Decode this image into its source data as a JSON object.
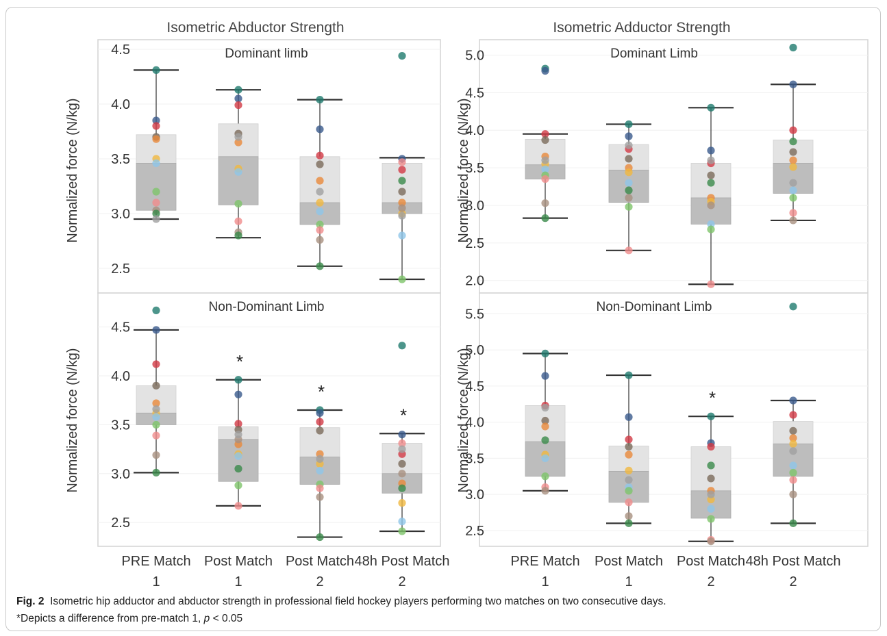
{
  "colors": {
    "box_upper": "#e3e3e3",
    "box_lower": "#bdbdbd",
    "whisker": "#333333",
    "divider": "#d4d4d4",
    "players": [
      "#1f7a6e",
      "#3a5a8c",
      "#d23a45",
      "#7a6a5a",
      "#e8883a",
      "#f0b840",
      "#8fc5e8",
      "#7ec46a",
      "#f08c8c",
      "#a89080",
      "#3a8a4a",
      "#a0a0a0"
    ]
  },
  "chart_data": [
    {
      "type": "box",
      "column_title": "Isometric Abductor Strength",
      "subtitle": "Dominant limb",
      "ylabel": "Normalized force (N/kg)",
      "ylim": [
        2.3,
        4.55
      ],
      "yticks": [
        2.5,
        3.0,
        3.5,
        4.0,
        4.5
      ],
      "ytick_labels": [
        "2.5",
        "3.0",
        "3.5",
        "4.0",
        "4.5"
      ],
      "categories": [
        "PRE Match 1",
        "Post Match 1",
        "Post Match 2",
        "48h Post Match 2"
      ],
      "boxes": [
        {
          "min": 2.95,
          "q1": 3.03,
          "median": 3.46,
          "q3": 3.72,
          "max": 4.31,
          "sig": false
        },
        {
          "min": 2.78,
          "q1": 3.08,
          "median": 3.52,
          "q3": 3.82,
          "max": 4.13,
          "sig": false
        },
        {
          "min": 2.52,
          "q1": 2.9,
          "median": 3.1,
          "q3": 3.52,
          "max": 4.04,
          "sig": false
        },
        {
          "min": 2.4,
          "q1": 3.0,
          "median": 3.1,
          "q3": 3.46,
          "max": 3.51,
          "sig": false
        }
      ],
      "points": [
        [
          4.31,
          3.85,
          3.8,
          3.7,
          3.68,
          3.5,
          3.46,
          3.2,
          3.1,
          3.03,
          3.0,
          2.95
        ],
        [
          4.13,
          4.05,
          3.99,
          3.73,
          3.65,
          3.41,
          3.38,
          3.09,
          2.93,
          2.83,
          2.8,
          3.7
        ],
        [
          4.04,
          3.77,
          3.53,
          3.45,
          3.3,
          3.1,
          3.02,
          2.9,
          2.85,
          2.76,
          2.52,
          3.2
        ],
        [
          4.44,
          3.5,
          3.4,
          3.2,
          3.1,
          3.0,
          2.8,
          2.4,
          3.47,
          3.05,
          3.3,
          2.98
        ]
      ]
    },
    {
      "type": "box",
      "column_title": "Isometric Adductor Strength",
      "subtitle": "Dominant Limb",
      "ylabel": "Normalized force (N/kg)",
      "ylim": [
        1.87,
        5.15
      ],
      "yticks": [
        2.0,
        2.5,
        3.0,
        3.5,
        4.0,
        4.5,
        5.0
      ],
      "ytick_labels": [
        "2.0",
        "2.5",
        "3.0",
        "3.5",
        "4.0",
        "4.5",
        "5.0"
      ],
      "categories": [
        "PRE Match 1",
        "Post Match 1",
        "Post Match 2",
        "48h Post Match 2"
      ],
      "boxes": [
        {
          "min": 2.83,
          "q1": 3.35,
          "median": 3.54,
          "q3": 3.88,
          "max": 3.95,
          "sig": false
        },
        {
          "min": 2.4,
          "q1": 3.04,
          "median": 3.47,
          "q3": 3.81,
          "max": 4.08,
          "sig": false
        },
        {
          "min": 1.95,
          "q1": 2.75,
          "median": 3.1,
          "q3": 3.56,
          "max": 4.3,
          "sig": false
        },
        {
          "min": 2.8,
          "q1": 3.16,
          "median": 3.56,
          "q3": 3.87,
          "max": 4.61,
          "sig": false
        }
      ],
      "points": [
        [
          4.82,
          4.79,
          3.95,
          3.87,
          3.65,
          3.55,
          3.48,
          3.4,
          3.35,
          3.03,
          2.83,
          3.6
        ],
        [
          4.08,
          3.92,
          3.75,
          3.62,
          3.5,
          3.44,
          3.3,
          2.98,
          2.4,
          3.1,
          3.2,
          3.8
        ],
        [
          4.3,
          3.73,
          3.56,
          3.4,
          3.1,
          3.05,
          2.75,
          2.68,
          1.95,
          3.0,
          3.3,
          3.6
        ],
        [
          5.1,
          4.61,
          4.0,
          3.71,
          3.6,
          3.51,
          3.2,
          3.1,
          2.9,
          2.8,
          3.85,
          3.3
        ]
      ]
    },
    {
      "type": "box",
      "column_title": "",
      "subtitle": "Non-Dominant Limb",
      "ylabel": "Normalized force (N/kg)",
      "ylim": [
        2.27,
        4.82
      ],
      "yticks": [
        2.5,
        3.0,
        3.5,
        4.0,
        4.5
      ],
      "ytick_labels": [
        "2.5",
        "3.0",
        "3.5",
        "4.0",
        "4.5"
      ],
      "categories": [
        "PRE Match 1",
        "Post Match 1",
        "Post Match 2",
        "48h Post Match 2"
      ],
      "boxes": [
        {
          "min": 3.01,
          "q1": 3.5,
          "median": 3.62,
          "q3": 3.9,
          "max": 4.47,
          "sig": false
        },
        {
          "min": 2.67,
          "q1": 2.92,
          "median": 3.35,
          "q3": 3.48,
          "max": 3.96,
          "sig": true
        },
        {
          "min": 2.35,
          "q1": 2.89,
          "median": 3.17,
          "q3": 3.47,
          "max": 3.65,
          "sig": true
        },
        {
          "min": 2.41,
          "q1": 2.8,
          "median": 3.0,
          "q3": 3.31,
          "max": 3.41,
          "sig": true
        }
      ],
      "points": [
        [
          4.67,
          4.47,
          4.12,
          3.9,
          3.72,
          3.62,
          3.58,
          3.5,
          3.39,
          3.19,
          3.01,
          3.66
        ],
        [
          3.96,
          3.81,
          3.51,
          3.45,
          3.3,
          3.2,
          3.18,
          2.88,
          2.67,
          3.35,
          3.05,
          3.4
        ],
        [
          3.65,
          3.62,
          3.53,
          3.44,
          3.2,
          3.1,
          3.03,
          2.89,
          2.85,
          2.76,
          2.35,
          3.15
        ],
        [
          4.31,
          3.4,
          3.2,
          3.1,
          2.9,
          2.7,
          2.51,
          2.41,
          3.31,
          3.0,
          2.85,
          3.25
        ]
      ]
    },
    {
      "type": "box",
      "column_title": "",
      "subtitle": "Non-Dominant Limb",
      "ylabel": "Normalized force (N/kg)",
      "ylim": [
        2.3,
        5.75
      ],
      "yticks": [
        2.5,
        3.0,
        3.5,
        4.0,
        4.5,
        5.0,
        5.5
      ],
      "ytick_labels": [
        "2.5",
        "3.0",
        "3.5",
        "4.0",
        "4.5",
        "5.0",
        "5.5"
      ],
      "categories": [
        "PRE Match 1",
        "Post Match 1",
        "Post Match 2",
        "48h Post Match 2"
      ],
      "boxes": [
        {
          "min": 3.05,
          "q1": 3.25,
          "median": 3.73,
          "q3": 4.23,
          "max": 4.95,
          "sig": false
        },
        {
          "min": 2.6,
          "q1": 2.89,
          "median": 3.32,
          "q3": 3.67,
          "max": 4.65,
          "sig": false
        },
        {
          "min": 2.35,
          "q1": 2.67,
          "median": 3.05,
          "q3": 3.66,
          "max": 4.08,
          "sig": true
        },
        {
          "min": 2.6,
          "q1": 3.25,
          "median": 3.7,
          "q3": 4.01,
          "max": 4.3,
          "sig": false
        }
      ],
      "points": [
        [
          4.95,
          4.64,
          4.23,
          4.02,
          3.94,
          3.55,
          3.5,
          3.25,
          3.1,
          3.05,
          3.75,
          4.2
        ],
        [
          4.65,
          4.07,
          3.76,
          3.66,
          3.55,
          3.33,
          3.1,
          3.05,
          2.89,
          2.7,
          2.6,
          3.2
        ],
        [
          4.08,
          3.71,
          3.66,
          3.22,
          3.05,
          2.93,
          2.8,
          2.66,
          2.37,
          2.35,
          3.4,
          3.0
        ],
        [
          5.6,
          4.3,
          4.1,
          3.88,
          3.78,
          3.7,
          3.4,
          3.3,
          3.2,
          3.0,
          2.6,
          3.6
        ]
      ]
    }
  ],
  "significance_marker": "*",
  "caption": {
    "figure_label": "Fig. 2",
    "text": "Isometric hip adductor and abductor strength in professional field hockey players performing two matches on two consecutive days.",
    "note_prefix": "*Depicts a difference from pre-match 1, ",
    "p_symbol": "p",
    "p_value": " < 0.05"
  }
}
